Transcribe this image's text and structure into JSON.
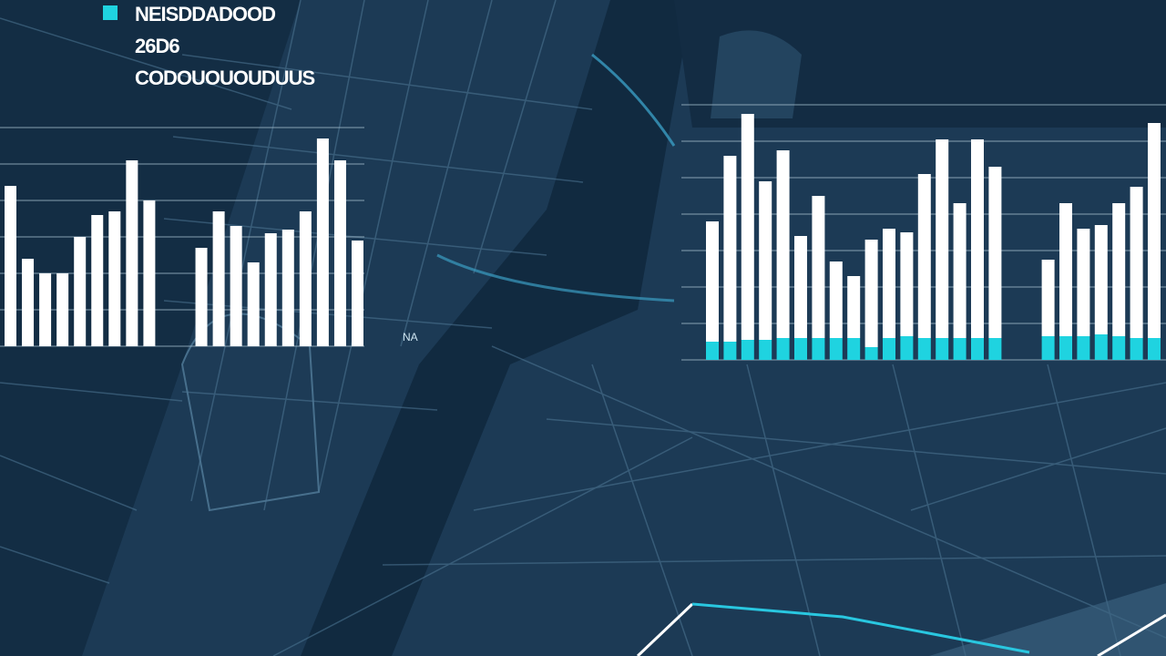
{
  "chart_data": [
    {
      "type": "bar",
      "title": "NEISDDADOOD",
      "subtitle": "26D6",
      "caption": "CODOUOUOUDUUS",
      "annotation": "NA",
      "legend_color": "#1fd3e0",
      "categories": [
        null,
        null,
        null,
        null,
        null,
        null,
        null,
        null,
        null,
        null,
        null,
        null,
        null,
        null,
        null,
        null,
        null,
        null,
        null,
        null,
        null
      ],
      "values": [
        4.4,
        2.4,
        2.0,
        2.0,
        3.0,
        3.6,
        3.7,
        5.1,
        4.0,
        null,
        null,
        2.7,
        3.7,
        3.3,
        2.3,
        3.1,
        3.2,
        3.7,
        5.7,
        5.1,
        2.9
      ],
      "color": "#ffffff",
      "ylim": [
        0,
        6
      ],
      "yticks": [
        0,
        1,
        2,
        3,
        4,
        5,
        6
      ],
      "grid": true,
      "tick_labels": false
    },
    {
      "type": "stacked-bar",
      "categories": [
        null,
        null,
        null,
        null,
        null,
        null,
        null,
        null,
        null,
        null,
        null,
        null,
        null,
        null,
        null,
        null,
        null,
        null,
        null,
        null,
        null,
        null,
        null,
        null,
        null,
        null
      ],
      "series": [
        {
          "color": "#1fd3e0",
          "values": [
            0.5,
            0.5,
            0.55,
            0.55,
            0.6,
            0.6,
            0.6,
            0.6,
            0.6,
            0.35,
            0.6,
            0.65,
            0.6,
            0.6,
            0.6,
            0.6,
            0.6,
            null,
            null,
            0.65,
            0.65,
            0.65,
            0.7,
            0.65,
            0.6,
            0.6
          ]
        },
        {
          "color": "#ffffff",
          "values": [
            3.3,
            5.1,
            6.2,
            4.35,
            5.15,
            2.8,
            3.9,
            2.1,
            1.7,
            2.95,
            3.0,
            2.85,
            4.5,
            5.45,
            3.7,
            5.45,
            4.7,
            null,
            null,
            2.1,
            3.65,
            2.95,
            3.0,
            3.65,
            4.15,
            5.9
          ]
        }
      ],
      "ylim": [
        0,
        7
      ],
      "yticks": [
        0,
        1,
        2,
        3,
        4,
        5,
        6,
        7
      ],
      "grid": true,
      "tick_labels": false
    }
  ]
}
